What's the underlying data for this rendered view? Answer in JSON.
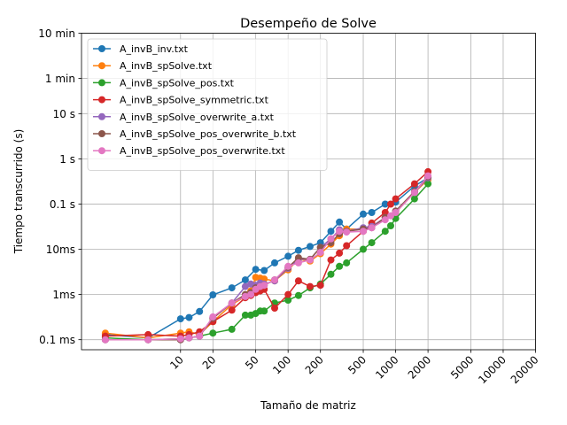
{
  "chart_data": {
    "type": "line",
    "title": "Desempeño de Solve",
    "xlabel": "Tamaño de matriz",
    "ylabel": "Tiempo transcurrido (s)",
    "xscale": "log",
    "yscale": "log",
    "xlim": [
      1.2,
      20000
    ],
    "ylim": [
      6e-05,
      600
    ],
    "grid": true,
    "legend_position": "top-left",
    "x_ticks": [
      {
        "v": 10,
        "label": "10"
      },
      {
        "v": 20,
        "label": "20"
      },
      {
        "v": 50,
        "label": "50"
      },
      {
        "v": 100,
        "label": "100"
      },
      {
        "v": 200,
        "label": "200"
      },
      {
        "v": 500,
        "label": "500"
      },
      {
        "v": 1000,
        "label": "1000"
      },
      {
        "v": 2000,
        "label": "2000"
      },
      {
        "v": 5000,
        "label": "5000"
      },
      {
        "v": 10000,
        "label": "10000"
      },
      {
        "v": 20000,
        "label": "20000"
      }
    ],
    "y_ticks": [
      {
        "v": 0.0001,
        "label": "0.1 ms"
      },
      {
        "v": 0.001,
        "label": "1ms"
      },
      {
        "v": 0.01,
        "label": "10ms"
      },
      {
        "v": 0.1,
        "label": "0.1 s"
      },
      {
        "v": 1,
        "label": "1 s"
      },
      {
        "v": 10,
        "label": "10 s"
      },
      {
        "v": 60,
        "label": "1 min"
      },
      {
        "v": 600,
        "label": "10 min"
      }
    ],
    "series": [
      {
        "name": "A_invB_inv.txt",
        "color": "#1f77b4",
        "x": [
          2,
          5,
          10,
          12,
          15,
          20,
          30,
          40,
          50,
          60,
          75,
          100,
          125,
          160,
          200,
          250,
          300,
          350,
          500,
          600,
          800,
          1000,
          1500,
          2000
        ],
        "y": [
          0.00013,
          0.00011,
          0.00029,
          0.00031,
          0.00042,
          0.00098,
          0.0014,
          0.0021,
          0.0036,
          0.0034,
          0.005,
          0.007,
          0.0095,
          0.0115,
          0.014,
          0.025,
          0.04,
          0.028,
          0.06,
          0.065,
          0.1,
          0.11,
          0.25,
          0.38
        ]
      },
      {
        "name": "A_invB_spSolve.txt",
        "color": "#ff7f0e",
        "x": [
          2,
          5,
          10,
          12,
          15,
          20,
          30,
          40,
          45,
          50,
          55,
          60,
          75,
          100,
          125,
          160,
          200,
          250,
          300,
          350,
          500,
          600,
          800,
          1000,
          1500,
          2000
        ],
        "y": [
          0.00014,
          0.00011,
          0.00014,
          0.00015,
          0.00013,
          0.00025,
          0.0006,
          0.0009,
          0.0012,
          0.0024,
          0.0023,
          0.0022,
          0.002,
          0.0035,
          0.006,
          0.0055,
          0.008,
          0.013,
          0.02,
          0.028,
          0.028,
          0.032,
          0.05,
          0.065,
          0.18,
          0.35
        ]
      },
      {
        "name": "A_invB_spSolve_pos.txt",
        "color": "#2ca02c",
        "x": [
          2,
          5,
          10,
          12,
          15,
          20,
          30,
          40,
          45,
          50,
          55,
          60,
          75,
          100,
          125,
          160,
          200,
          250,
          300,
          350,
          500,
          600,
          800,
          900,
          1000,
          1500,
          2000
        ],
        "y": [
          0.00011,
          0.0001,
          0.000105,
          0.00011,
          0.00012,
          0.00014,
          0.00017,
          0.00035,
          0.00035,
          0.00038,
          0.00043,
          0.00043,
          0.00065,
          0.00075,
          0.00095,
          0.0014,
          0.0017,
          0.0028,
          0.0042,
          0.005,
          0.01,
          0.014,
          0.025,
          0.033,
          0.048,
          0.13,
          0.28
        ]
      },
      {
        "name": "A_invB_spSolve_symmetric.txt",
        "color": "#d62728",
        "x": [
          2,
          5,
          10,
          12,
          15,
          20,
          30,
          40,
          45,
          50,
          55,
          60,
          75,
          100,
          125,
          160,
          200,
          250,
          300,
          350,
          500,
          600,
          800,
          900,
          1000,
          1500,
          2000
        ],
        "y": [
          0.00012,
          0.00013,
          0.00012,
          0.00013,
          0.00015,
          0.00025,
          0.00045,
          0.00085,
          0.00095,
          0.0011,
          0.0012,
          0.0013,
          0.0005,
          0.001,
          0.002,
          0.0015,
          0.0016,
          0.0058,
          0.0082,
          0.012,
          0.025,
          0.038,
          0.065,
          0.1,
          0.13,
          0.28,
          0.52
        ]
      },
      {
        "name": "A_invB_spSolve_overwrite_a.txt",
        "color": "#9467bd",
        "x": [
          2,
          5,
          10,
          12,
          15,
          20,
          30,
          40,
          45,
          50,
          55,
          60,
          75,
          100,
          125,
          160,
          200,
          250,
          300,
          350,
          500,
          600,
          800,
          1000,
          1500,
          2000
        ],
        "y": [
          0.0001,
          0.0001,
          0.0001,
          0.00011,
          0.00012,
          0.0003,
          0.00065,
          0.0015,
          0.0017,
          0.0016,
          0.0018,
          0.0017,
          0.002,
          0.0038,
          0.006,
          0.006,
          0.011,
          0.017,
          0.027,
          0.025,
          0.03,
          0.032,
          0.05,
          0.07,
          0.18,
          0.38
        ]
      },
      {
        "name": "A_invB_spSolve_pos_overwrite_b.txt",
        "color": "#8c564b",
        "x": [
          2,
          5,
          10,
          12,
          15,
          20,
          30,
          40,
          45,
          50,
          55,
          60,
          75,
          100,
          125,
          160,
          200,
          250,
          300,
          350,
          500,
          600,
          800,
          1000,
          1500,
          2000
        ],
        "y": [
          0.0001,
          0.0001,
          0.0001,
          0.00011,
          0.00012,
          0.0003,
          0.00065,
          0.001,
          0.0011,
          0.0014,
          0.0015,
          0.0016,
          0.0021,
          0.004,
          0.0065,
          0.006,
          0.011,
          0.014,
          0.022,
          0.025,
          0.028,
          0.03,
          0.05,
          0.07,
          0.19,
          0.4
        ]
      },
      {
        "name": "A_invB_spSolve_pos_overwrite.txt",
        "color": "#e377c2",
        "x": [
          2,
          5,
          10,
          12,
          15,
          20,
          30,
          40,
          45,
          50,
          55,
          60,
          75,
          100,
          125,
          160,
          200,
          250,
          300,
          350,
          500,
          600,
          800,
          900,
          1000,
          1500,
          2000
        ],
        "y": [
          0.0001,
          0.0001,
          0.000105,
          0.00011,
          0.00012,
          0.00032,
          0.00065,
          0.0009,
          0.001,
          0.0013,
          0.0015,
          0.0016,
          0.0021,
          0.0042,
          0.005,
          0.0058,
          0.0085,
          0.017,
          0.025,
          0.024,
          0.025,
          0.03,
          0.045,
          0.055,
          0.065,
          0.18,
          0.42
        ]
      }
    ]
  }
}
